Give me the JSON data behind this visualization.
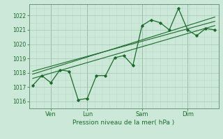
{
  "bg_color": "#cce8d8",
  "grid_color_major": "#a8c8b8",
  "grid_color_minor": "#b8d8c8",
  "line_color": "#1a6b2a",
  "marker_color": "#1a6b2a",
  "xlabel_text": "Pression niveau de la mer( hPa )",
  "x_tick_labels": [
    "Ven",
    "Lun",
    "Sam",
    "Dim"
  ],
  "x_tick_positions": [
    1,
    3,
    6,
    8.5
  ],
  "x_vlines": [
    1,
    3,
    6,
    8.5
  ],
  "ylim": [
    1015.5,
    1022.8
  ],
  "yticks": [
    1016,
    1017,
    1018,
    1019,
    1020,
    1021,
    1022
  ],
  "xlim": [
    -0.2,
    10.2
  ],
  "series1_x": [
    0,
    0.5,
    1.0,
    1.5,
    2.0,
    2.5,
    3.0,
    3.5,
    4.0,
    4.5,
    5.0,
    5.5,
    6.0,
    6.5,
    7.0,
    7.5,
    8.0,
    8.5,
    9.0,
    9.5,
    10.0
  ],
  "series1_y": [
    1017.1,
    1017.8,
    1017.3,
    1018.2,
    1018.1,
    1016.1,
    1016.2,
    1017.8,
    1017.8,
    1019.05,
    1019.2,
    1018.5,
    1021.3,
    1021.7,
    1021.5,
    1021.0,
    1022.5,
    1021.0,
    1020.6,
    1021.1,
    1021.0
  ],
  "series2_x": [
    0,
    10.0
  ],
  "series2_y": [
    1017.6,
    1021.3
  ],
  "series3_x": [
    0,
    10.0
  ],
  "series3_y": [
    1018.1,
    1021.6
  ],
  "series4_x": [
    0,
    10.0
  ],
  "series4_y": [
    1017.9,
    1021.9
  ]
}
